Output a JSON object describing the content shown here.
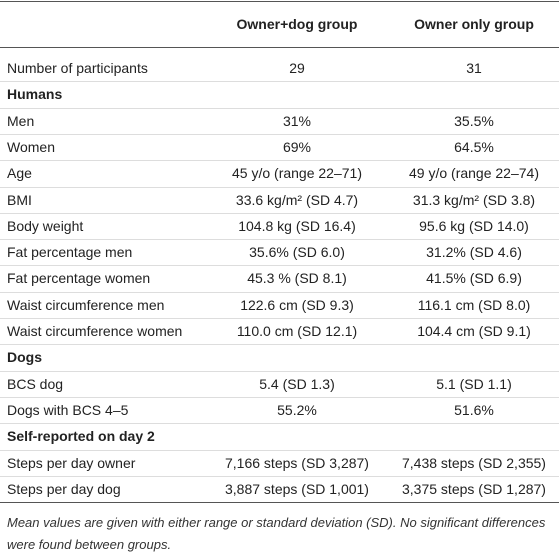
{
  "table": {
    "header": [
      "Owner+dog group",
      "Owner only group"
    ],
    "rows": [
      {
        "label": "Number of participants",
        "values": [
          "29",
          "31"
        ]
      },
      {
        "section": "Humans"
      },
      {
        "label": "Men",
        "values": [
          "31%",
          "35.5%"
        ]
      },
      {
        "label": "Women",
        "values": [
          "69%",
          "64.5%"
        ]
      },
      {
        "label": "Age",
        "values": [
          "45 y/o (range 22–71)",
          "49 y/o (range 22–74)"
        ]
      },
      {
        "label": "BMI",
        "values": [
          "33.6 kg/m² (SD 4.7)",
          "31.3 kg/m² (SD 3.8)"
        ]
      },
      {
        "label": "Body weight",
        "values": [
          "104.8 kg (SD 16.4)",
          "95.6 kg (SD 14.0)"
        ]
      },
      {
        "label": "Fat percentage men",
        "values": [
          "35.6% (SD 6.0)",
          "31.2% (SD 4.6)"
        ]
      },
      {
        "label": "Fat percentage women",
        "values": [
          "45.3 % (SD 8.1)",
          "41.5% (SD 6.9)"
        ]
      },
      {
        "label": "Waist circumference men",
        "values": [
          "122.6 cm (SD 9.3)",
          "116.1 cm (SD 8.0)"
        ]
      },
      {
        "label": "Waist circumference women",
        "values": [
          "110.0 cm (SD 12.1)",
          "104.4 cm (SD 9.1)"
        ]
      },
      {
        "section": "Dogs"
      },
      {
        "label": "BCS dog",
        "values": [
          "5.4 (SD 1.3)",
          "5.1 (SD 1.1)"
        ]
      },
      {
        "label": "Dogs with BCS 4–5",
        "values": [
          "55.2%",
          "51.6%"
        ]
      },
      {
        "section": "Self-reported on day 2"
      },
      {
        "label": "Steps per day owner",
        "values": [
          "7,166 steps (SD 3,287)",
          "7,438 steps (SD 2,355)"
        ]
      },
      {
        "label": "Steps per day dog",
        "values": [
          "3,887 steps (SD 1,001)",
          "3,375 steps (SD 1,287)"
        ]
      }
    ],
    "footnote": "Mean values are given with either range or standard deviation (SD). No significant differences were found between groups."
  }
}
